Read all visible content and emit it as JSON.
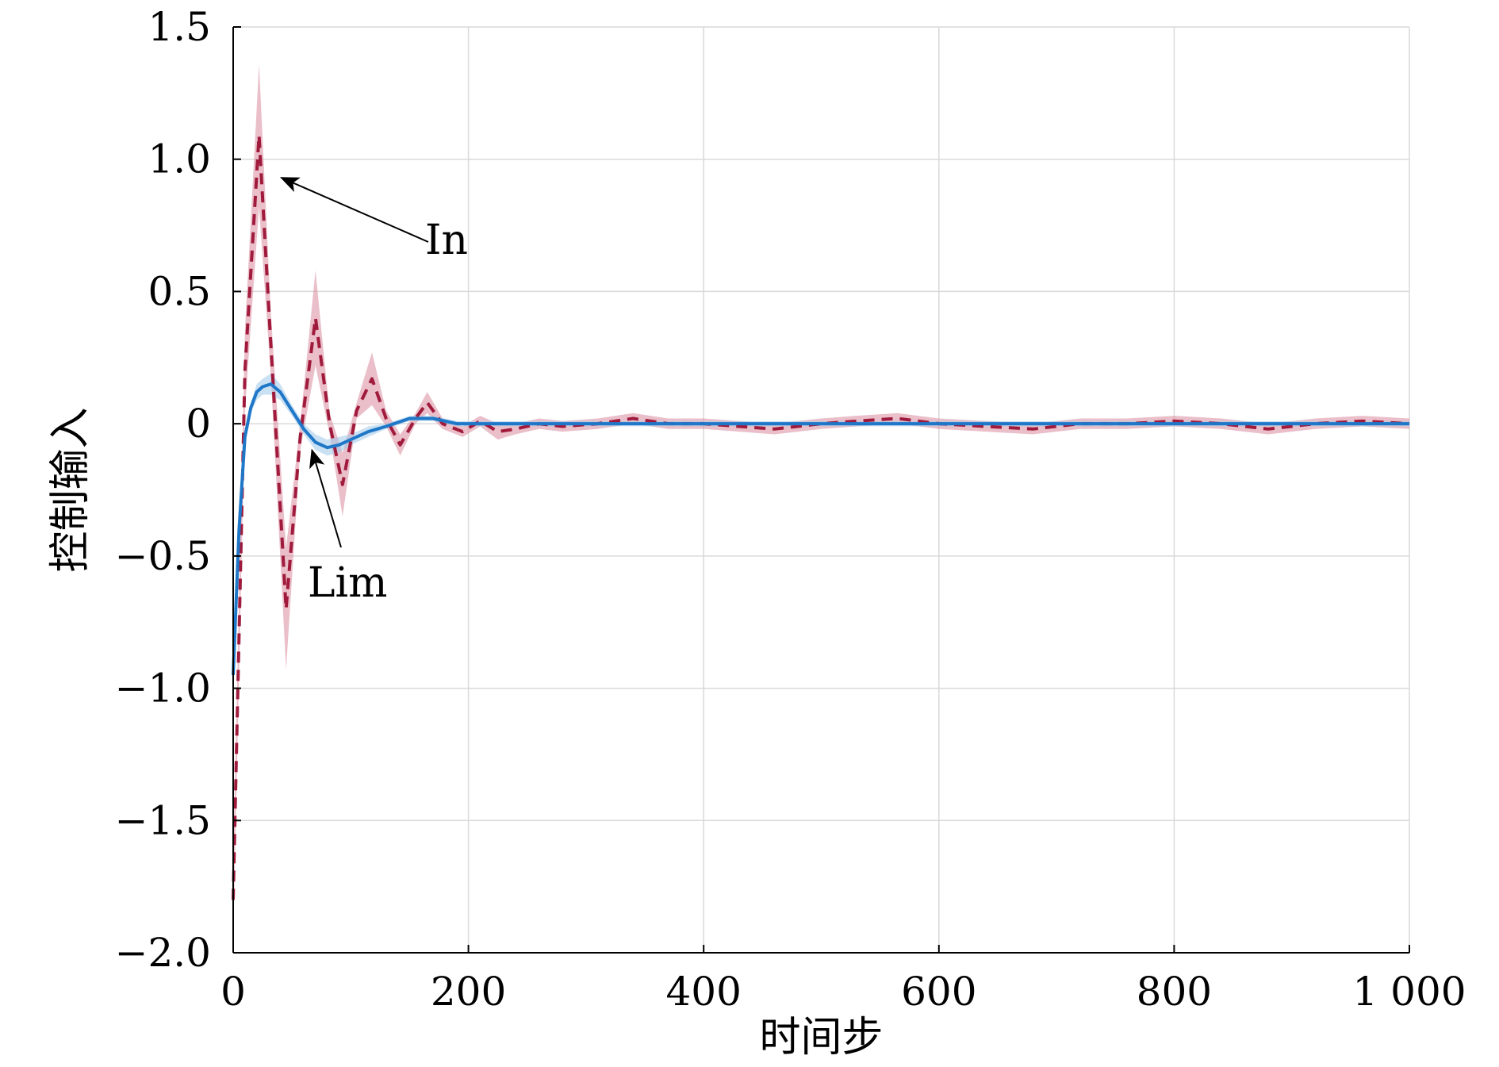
{
  "chart_data": {
    "type": "line",
    "xlabel": "时间步",
    "ylabel": "控制输入",
    "xlim": [
      0,
      1000
    ],
    "ylim": [
      -2.0,
      1.5
    ],
    "grid": true,
    "x_ticks": [
      0,
      200,
      400,
      600,
      800,
      1000
    ],
    "x_tick_labels": [
      "0",
      "200",
      "400",
      "600",
      "800",
      "1 000"
    ],
    "y_ticks": [
      1.5,
      1.0,
      0.5,
      0,
      -0.5,
      -1.0,
      -1.5,
      -2.0
    ],
    "y_tick_labels": [
      "1.5",
      "1.0",
      "0.5",
      "0",
      "−0.5",
      "−1.0",
      "−1.5",
      "−2.0"
    ],
    "series": [
      {
        "name": "In",
        "color": "#a01a3c",
        "band_color": "#d98a9c",
        "style": "dashed",
        "x": [
          0,
          10,
          22,
          32,
          45,
          57,
          70,
          82,
          93,
          105,
          118,
          130,
          142,
          155,
          165,
          178,
          195,
          210,
          225,
          240,
          260,
          280,
          310,
          340,
          370,
          400,
          430,
          460,
          500,
          530,
          565,
          600,
          640,
          680,
          720,
          760,
          800,
          840,
          880,
          920,
          960,
          1000
        ],
        "y": [
          -1.8,
          0.2,
          1.09,
          0.3,
          -0.7,
          -0.05,
          0.4,
          0.0,
          -0.23,
          0.05,
          0.17,
          0.02,
          -0.08,
          0.02,
          0.08,
          0.0,
          -0.03,
          0.01,
          -0.03,
          -0.02,
          0.0,
          -0.01,
          0.0,
          0.02,
          0.0,
          0.0,
          -0.01,
          -0.02,
          0.0,
          0.01,
          0.02,
          0.0,
          -0.01,
          -0.02,
          0.0,
          0.0,
          0.01,
          0.0,
          -0.02,
          0.0,
          0.01,
          0.0
        ],
        "band_halfwidth": [
          0.15,
          0.15,
          0.27,
          0.12,
          0.23,
          0.05,
          0.18,
          0.04,
          0.12,
          0.03,
          0.1,
          0.03,
          0.04,
          0.02,
          0.04,
          0.02,
          0.02,
          0.02,
          0.03,
          0.02,
          0.02,
          0.02,
          0.02,
          0.02,
          0.02,
          0.02,
          0.02,
          0.02,
          0.02,
          0.02,
          0.02,
          0.02,
          0.02,
          0.02,
          0.02,
          0.02,
          0.02,
          0.02,
          0.02,
          0.02,
          0.02,
          0.02
        ]
      },
      {
        "name": "Lim",
        "color": "#1f77c8",
        "band_color": "#9fc8ea",
        "style": "solid",
        "x": [
          0,
          5,
          10,
          15,
          20,
          25,
          32,
          40,
          50,
          60,
          70,
          80,
          90,
          100,
          115,
          130,
          150,
          170,
          190,
          210,
          240,
          270,
          300,
          350,
          400,
          500,
          600,
          700,
          800,
          900,
          1000
        ],
        "y": [
          -0.95,
          -0.4,
          -0.05,
          0.06,
          0.12,
          0.14,
          0.15,
          0.12,
          0.05,
          -0.02,
          -0.07,
          -0.09,
          -0.08,
          -0.06,
          -0.03,
          -0.01,
          0.02,
          0.02,
          0.0,
          0.0,
          0.0,
          0.0,
          0.0,
          0.0,
          0.0,
          0.0,
          0.0,
          0.0,
          0.0,
          0.0,
          0.0
        ],
        "band_halfwidth": [
          0.02,
          0.02,
          0.02,
          0.02,
          0.03,
          0.03,
          0.04,
          0.03,
          0.02,
          0.02,
          0.03,
          0.03,
          0.03,
          0.02,
          0.02,
          0.01,
          0.01,
          0.01,
          0.01,
          0.01,
          0.01,
          0.01,
          0.01,
          0.01,
          0.01,
          0.01,
          0.01,
          0.01,
          0.01,
          0.01,
          0.01
        ]
      }
    ],
    "annotations": [
      {
        "text": "In",
        "arrow_to": [
          41,
          0.93
        ]
      },
      {
        "text": "Lim",
        "arrow_to": [
          67,
          -0.1
        ]
      }
    ]
  }
}
